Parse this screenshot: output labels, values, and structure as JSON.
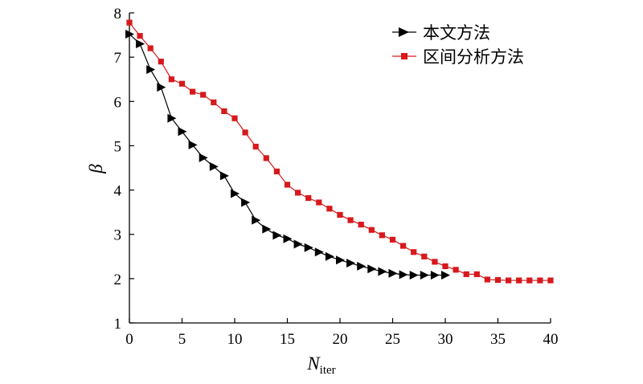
{
  "chart_data": {
    "type": "line",
    "xlabel": "N",
    "xlabel_subscript": "iter",
    "ylabel": "β",
    "xlim": [
      0,
      40
    ],
    "ylim": [
      1,
      8
    ],
    "xticks": [
      0,
      5,
      10,
      15,
      20,
      25,
      30,
      35,
      40
    ],
    "yticks": [
      1,
      2,
      3,
      4,
      5,
      6,
      7,
      8
    ],
    "grid": false,
    "legend_position": "top-right",
    "series": [
      {
        "name": "本文方法",
        "color": "#000000",
        "marker": "triangle-right",
        "x": [
          0,
          1,
          2,
          3,
          4,
          5,
          6,
          7,
          8,
          9,
          10,
          11,
          12,
          13,
          14,
          15,
          16,
          17,
          18,
          19,
          20,
          21,
          22,
          23,
          24,
          25,
          26,
          27,
          28,
          29,
          30
        ],
        "y": [
          7.52,
          7.3,
          6.72,
          6.32,
          5.62,
          5.32,
          5.02,
          4.73,
          4.53,
          4.32,
          3.92,
          3.72,
          3.32,
          3.12,
          2.98,
          2.9,
          2.78,
          2.7,
          2.6,
          2.5,
          2.42,
          2.35,
          2.28,
          2.22,
          2.16,
          2.12,
          2.09,
          2.08,
          2.08,
          2.08,
          2.08
        ]
      },
      {
        "name": "区间分析方法",
        "color": "#d7191c",
        "marker": "square",
        "x": [
          0,
          1,
          2,
          3,
          4,
          5,
          6,
          7,
          8,
          9,
          10,
          11,
          12,
          13,
          14,
          15,
          16,
          17,
          18,
          19,
          20,
          21,
          22,
          23,
          24,
          25,
          26,
          27,
          28,
          29,
          30,
          31,
          32,
          33,
          34,
          35,
          36,
          37,
          38,
          39,
          40
        ],
        "y": [
          7.78,
          7.48,
          7.2,
          6.9,
          6.5,
          6.4,
          6.22,
          6.15,
          5.98,
          5.78,
          5.62,
          5.3,
          4.98,
          4.72,
          4.42,
          4.12,
          3.94,
          3.82,
          3.72,
          3.58,
          3.44,
          3.32,
          3.22,
          3.1,
          2.98,
          2.88,
          2.74,
          2.6,
          2.5,
          2.38,
          2.28,
          2.2,
          2.1,
          2.1,
          1.98,
          1.97,
          1.96,
          1.96,
          1.96,
          1.96,
          1.96
        ]
      }
    ]
  }
}
